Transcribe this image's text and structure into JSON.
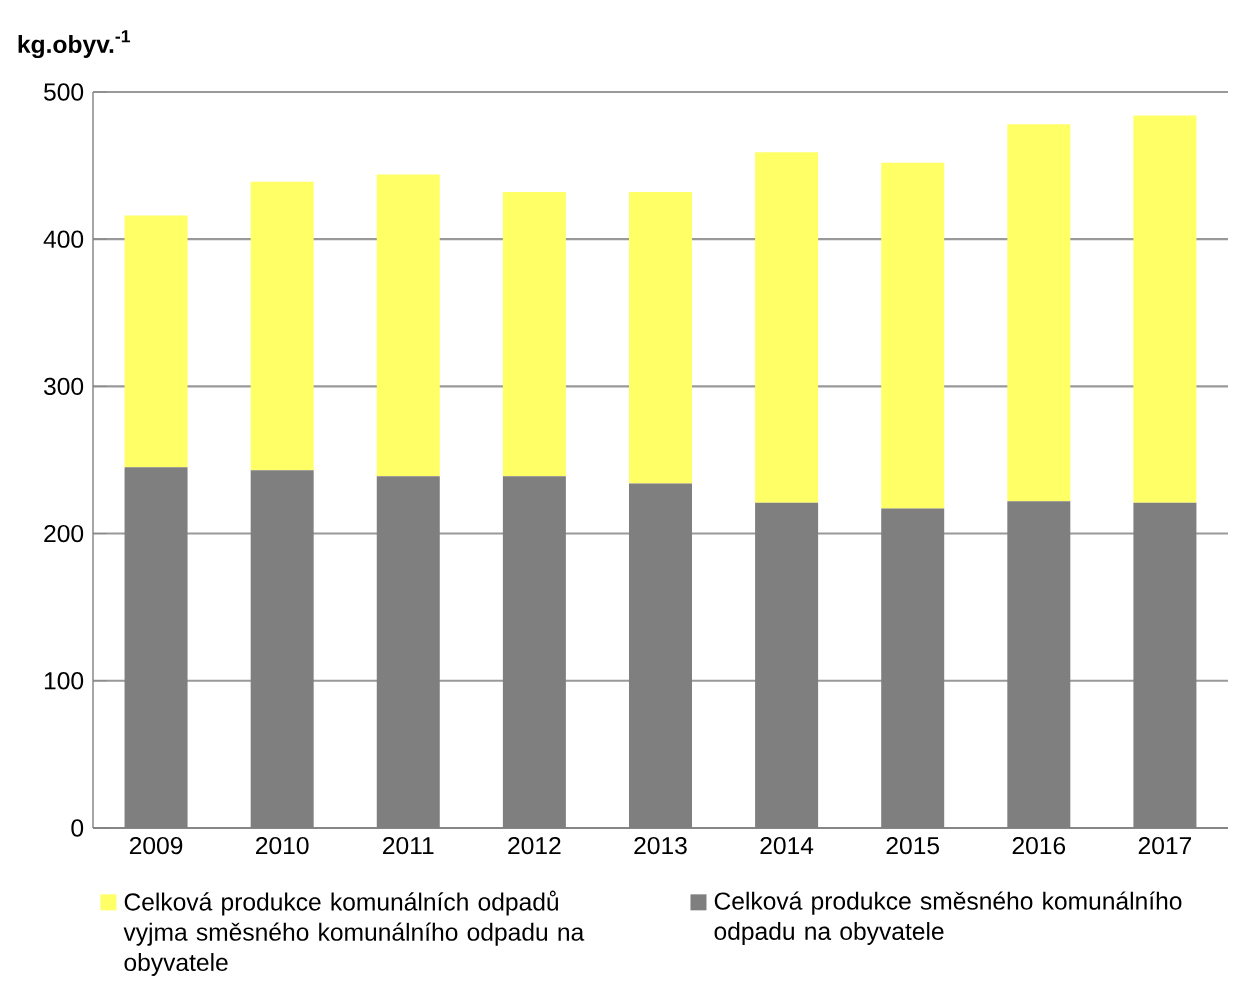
{
  "chart_data": {
    "type": "bar",
    "stacked": true,
    "ylabel": "kg.obyv.$^{-1}$",
    "categories": [
      "2009",
      "2010",
      "2011",
      "2012",
      "2013",
      "2014",
      "2015",
      "2016",
      "2017"
    ],
    "series": [
      {
        "name": "Celková produkce směsného komunálního odpadu na obyvatele",
        "color": "#7f7f7f",
        "values": [
          245,
          243,
          239,
          239,
          234,
          221,
          217,
          222,
          221
        ]
      },
      {
        "name": "Celková produkce komunálních odpadů vyjma směsného komunálního odpadu na obyvatele",
        "color": "#ffff66",
        "values": [
          171,
          196,
          205,
          193,
          198,
          238,
          235,
          256,
          263
        ]
      }
    ],
    "ylim": [
      0,
      500
    ],
    "yticks": [
      0,
      100,
      200,
      300,
      400,
      500
    ],
    "grid": "y",
    "legend": "bottom"
  }
}
